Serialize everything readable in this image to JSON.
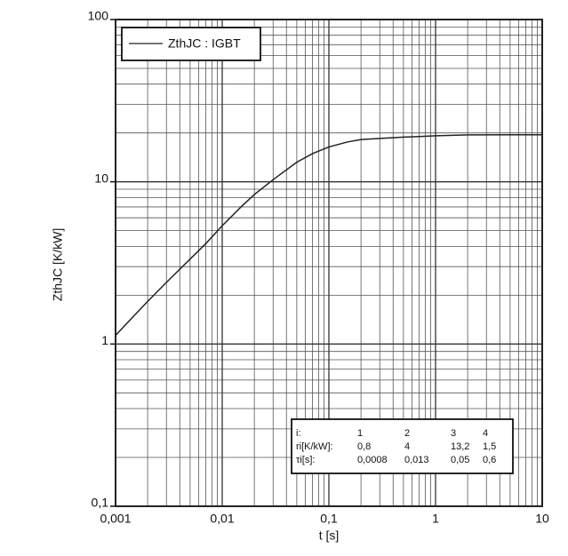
{
  "chart_data": {
    "type": "line",
    "xlabel": "t [s]",
    "ylabel": "ZthJC [K/kW]",
    "x": [
      0.001,
      0.0015,
      0.002,
      0.003,
      0.005,
      0.007,
      0.01,
      0.015,
      0.02,
      0.03,
      0.05,
      0.07,
      0.1,
      0.15,
      0.2,
      0.3,
      0.5,
      0.7,
      1,
      2,
      5,
      10
    ],
    "series": [
      {
        "name": "ZthJC : IGBT",
        "color": "#222222",
        "values": [
          1.13,
          1.5,
          1.83,
          2.4,
          3.34,
          4.15,
          5.36,
          7.0,
          8.34,
          10.3,
          13.2,
          14.9,
          16.4,
          17.6,
          18.2,
          18.5,
          18.85,
          19.0,
          19.2,
          19.45,
          19.5,
          19.5
        ]
      }
    ],
    "xscale": "log",
    "yscale": "log",
    "xlim": [
      0.001,
      10
    ],
    "ylim": [
      0.1,
      100
    ],
    "xticks": [
      {
        "value": 0.001,
        "label": "0,001"
      },
      {
        "value": 0.01,
        "label": "0,01"
      },
      {
        "value": 0.1,
        "label": "0,1"
      },
      1,
      10
    ],
    "yticks": [
      {
        "value": 0.1,
        "label": "0,1"
      },
      1,
      10,
      100
    ],
    "grid": true,
    "legend": "upper left",
    "table": {
      "rows": [
        [
          "i:",
          "1",
          "2",
          "3",
          "4"
        ],
        [
          "ri[K/kW]:",
          "0,8",
          "4",
          "13,2",
          "1,5"
        ],
        [
          "τi[s]:",
          "0,0008",
          "0,013",
          "0,05",
          "0,6"
        ]
      ]
    }
  }
}
